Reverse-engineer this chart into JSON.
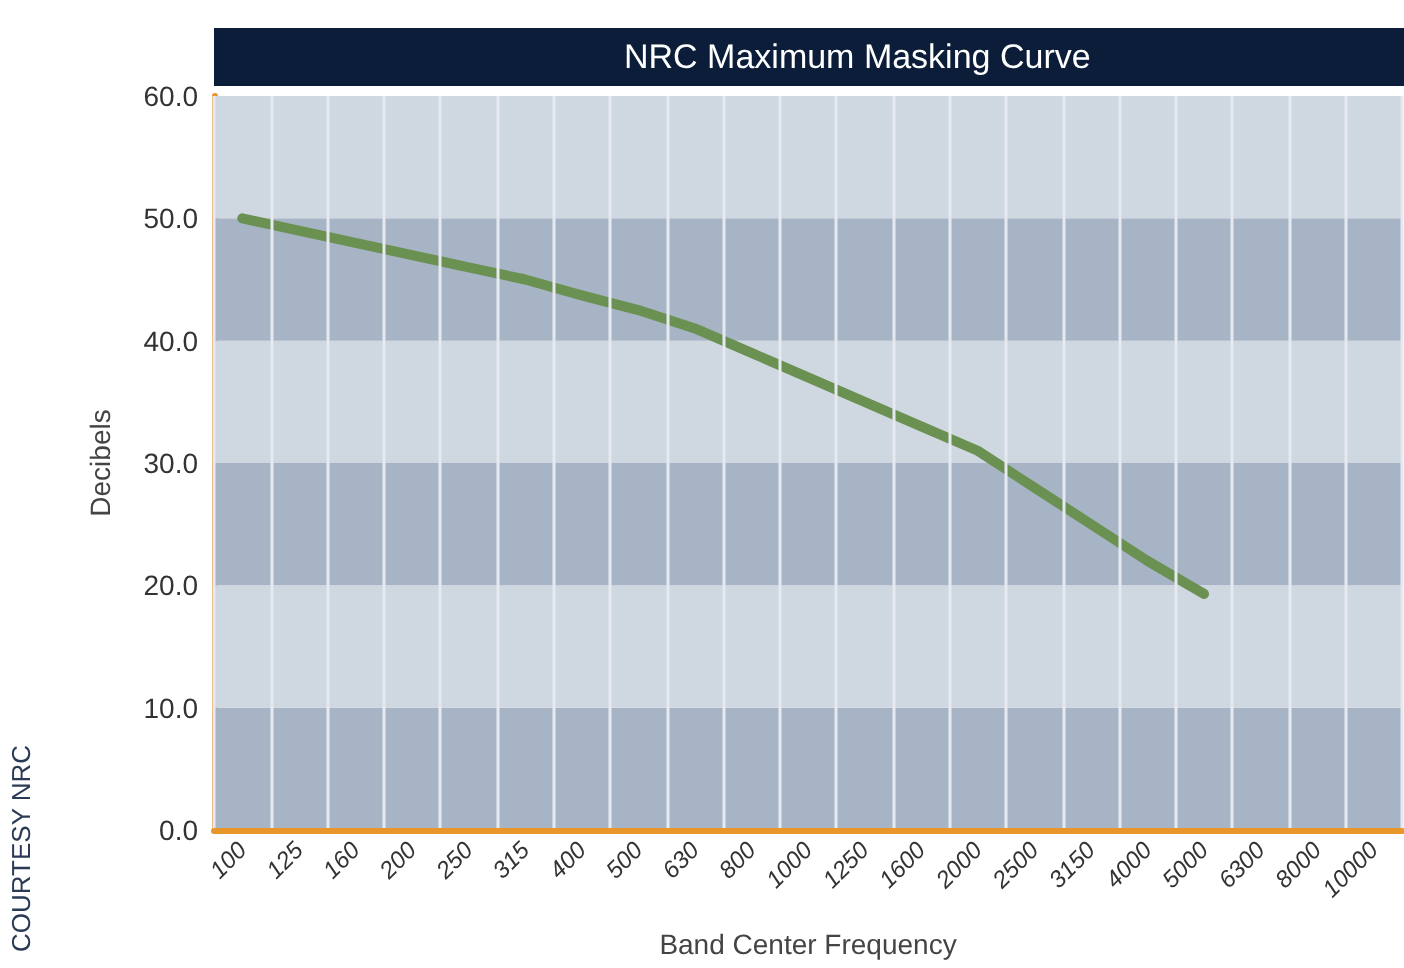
{
  "chart_data": {
    "type": "line",
    "title": "NRC Maximum Masking Curve",
    "xlabel": "Band Center Frequency",
    "ylabel": "Decibels",
    "annotations": [
      "COURTESY NRC"
    ],
    "categories": [
      "100",
      "125",
      "160",
      "200",
      "250",
      "315",
      "400",
      "500",
      "630",
      "800",
      "1000",
      "1250",
      "1600",
      "2000",
      "2500",
      "3150",
      "4000",
      "5000",
      "6300",
      "8000",
      "10000"
    ],
    "series": [
      {
        "color": "#6a9152",
        "values": [
          50,
          49,
          48,
          47,
          46,
          45,
          43.7,
          42.5,
          41,
          39,
          37,
          35,
          33,
          31,
          28,
          25,
          22,
          19.3,
          null,
          null,
          null
        ]
      }
    ],
    "ylim": [
      0,
      60
    ],
    "yticks": [
      {
        "value": 0,
        "label": "0.0"
      },
      {
        "value": 10,
        "label": "10.0"
      },
      {
        "value": 20,
        "label": "20.0"
      },
      {
        "value": 30,
        "label": "30.0"
      },
      {
        "value": 40,
        "label": "40.0"
      },
      {
        "value": 50,
        "label": "50.0"
      },
      {
        "value": 60,
        "label": "60.0"
      }
    ],
    "bands": [
      {
        "axis": "y",
        "from": 0,
        "to": 10,
        "color": "#a7b4c5"
      },
      {
        "axis": "y",
        "from": 10,
        "to": 20,
        "color": "#cfd7e0"
      },
      {
        "axis": "y",
        "from": 20,
        "to": 30,
        "color": "#a7b4c5"
      },
      {
        "axis": "y",
        "from": 30,
        "to": 40,
        "color": "#cfd7e0"
      },
      {
        "axis": "y",
        "from": 40,
        "to": 50,
        "color": "#a7b4c5"
      },
      {
        "axis": "y",
        "from": 50,
        "to": 60,
        "color": "#cfd7e0"
      }
    ],
    "grid": "x",
    "marker": "none",
    "line_style": "solid"
  }
}
